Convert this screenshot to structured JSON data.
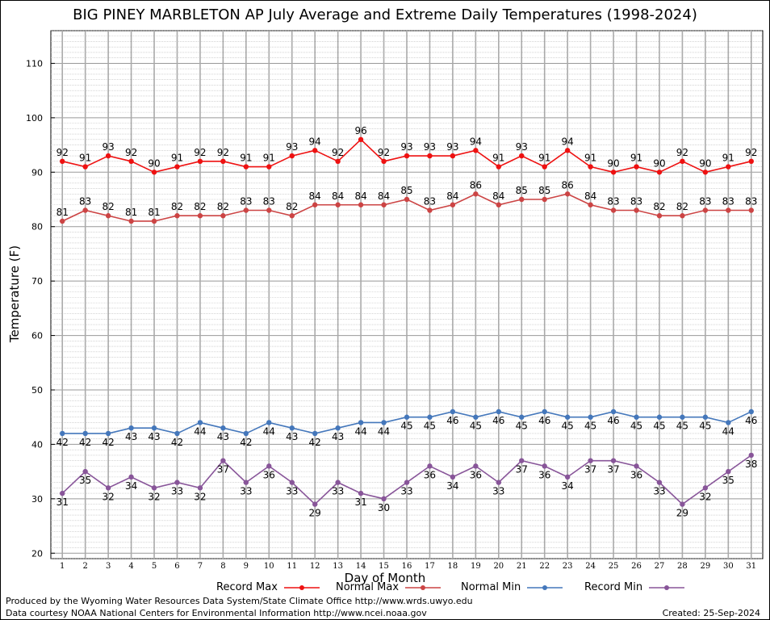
{
  "title": "BIG PINEY MARBLETON AP July Average and Extreme Daily Temperatures (1998-2024)",
  "xlabel": "Day of Month",
  "ylabel": "Temperature (F)",
  "footer_left_1": "Produced by the Wyoming Water Resources Data System/State Climate Office http://www.wrds.uwyo.edu",
  "footer_left_2": "Data courtesy NOAA National Centers for Environmental Information http://www.ncei.noaa.gov",
  "footer_right": "Created:  25-Sep-2024",
  "chart_data": {
    "type": "line",
    "title": "BIG PINEY MARBLETON AP July Average and Extreme Daily Temperatures (1998-2024)",
    "xlabel": "Day of Month",
    "ylabel": "Temperature (F)",
    "x": [
      1,
      2,
      3,
      4,
      5,
      6,
      7,
      8,
      9,
      10,
      11,
      12,
      13,
      14,
      15,
      16,
      17,
      18,
      19,
      20,
      21,
      22,
      23,
      24,
      25,
      26,
      27,
      28,
      29,
      30,
      31
    ],
    "xlim": [
      0.5,
      31.5
    ],
    "ylim": [
      19,
      116
    ],
    "yticks": [
      20,
      30,
      40,
      50,
      60,
      70,
      80,
      90,
      100,
      110
    ],
    "grid": true,
    "legend_position": "bottom",
    "series": [
      {
        "name": "Record Max",
        "color": "#ee1111",
        "values": [
          92,
          91,
          93,
          92,
          90,
          91,
          92,
          92,
          91,
          91,
          93,
          94,
          92,
          96,
          92,
          93,
          93,
          93,
          94,
          91,
          93,
          91,
          94,
          91,
          90,
          91,
          90,
          92,
          90,
          91,
          92
        ]
      },
      {
        "name": "Normal Max",
        "color": "#cc4444",
        "values": [
          81,
          83,
          82,
          81,
          81,
          82,
          82,
          82,
          83,
          83,
          82,
          84,
          84,
          84,
          84,
          85,
          83,
          84,
          86,
          84,
          85,
          85,
          86,
          84,
          83,
          83,
          82,
          82,
          83,
          83,
          83
        ]
      },
      {
        "name": "Normal Min",
        "color": "#4477bb",
        "values": [
          42,
          42,
          42,
          43,
          43,
          42,
          44,
          43,
          42,
          44,
          43,
          42,
          43,
          44,
          44,
          45,
          45,
          46,
          45,
          46,
          45,
          46,
          45,
          45,
          46,
          45,
          45,
          45,
          45,
          44,
          46
        ]
      },
      {
        "name": "Record Min",
        "color": "#885599",
        "values": [
          31,
          35,
          32,
          34,
          32,
          33,
          32,
          37,
          33,
          36,
          33,
          29,
          33,
          31,
          30,
          33,
          36,
          34,
          36,
          33,
          37,
          36,
          34,
          37,
          37,
          36,
          33,
          29,
          32,
          35,
          38
        ]
      }
    ]
  }
}
